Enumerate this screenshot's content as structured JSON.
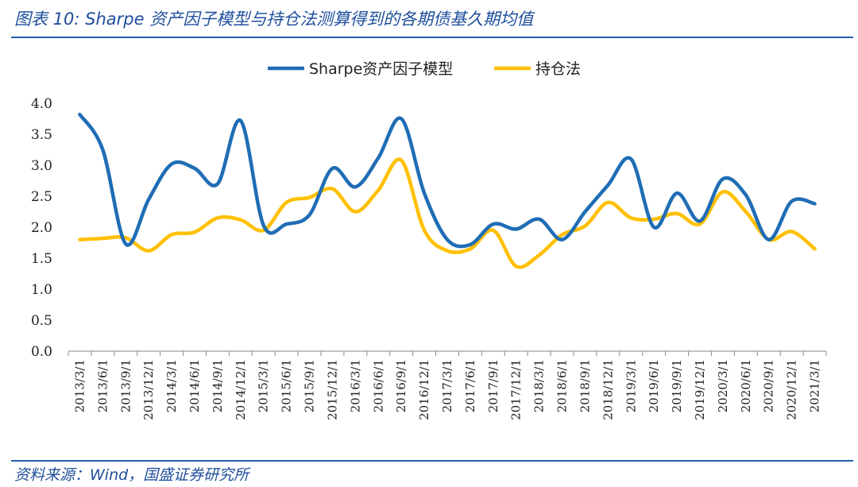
{
  "title": "图表 10: Sharpe 资产因子模型与持仓法测算得到的各期债基久期均值",
  "source": "资料来源：Wind，国盛证券研究所",
  "chart_data": {
    "type": "line",
    "title": "图表 10: Sharpe 资产因子模型与持仓法测算得到的各期债基久期均值",
    "xlabel": "",
    "ylabel": "",
    "ylim": [
      0,
      4.0
    ],
    "yticks": [
      "0.0",
      "0.5",
      "1.0",
      "1.5",
      "2.0",
      "2.5",
      "3.0",
      "3.5",
      "4.0"
    ],
    "grid": false,
    "legend_position": "top-center",
    "categories": [
      "2013/3/1",
      "2013/6/1",
      "2013/9/1",
      "2013/12/1",
      "2014/3/1",
      "2014/6/1",
      "2014/9/1",
      "2014/12/1",
      "2015/3/1",
      "2015/6/1",
      "2015/9/1",
      "2015/12/1",
      "2016/3/1",
      "2016/6/1",
      "2016/9/1",
      "2016/12/1",
      "2017/3/1",
      "2017/6/1",
      "2017/9/1",
      "2017/12/1",
      "2018/3/1",
      "2018/6/1",
      "2018/9/1",
      "2018/12/1",
      "2019/3/1",
      "2019/6/1",
      "2019/9/1",
      "2019/12/1",
      "2020/3/1",
      "2020/6/1",
      "2020/9/1",
      "2020/12/1",
      "2021/3/1"
    ],
    "series": [
      {
        "name": "Sharpe资产因子模型",
        "color": "#1f6db5",
        "values": [
          3.82,
          3.25,
          1.73,
          2.45,
          3.02,
          2.95,
          2.7,
          3.72,
          2.03,
          2.05,
          2.2,
          2.95,
          2.65,
          3.12,
          3.75,
          2.55,
          1.8,
          1.72,
          2.05,
          1.97,
          2.13,
          1.8,
          2.25,
          2.68,
          3.1,
          2.0,
          2.55,
          2.1,
          2.78,
          2.52,
          1.8,
          2.42,
          2.38
        ]
      },
      {
        "name": "持仓法",
        "color": "#ffc000",
        "values": [
          1.8,
          1.82,
          1.83,
          1.62,
          1.88,
          1.92,
          2.15,
          2.12,
          1.95,
          2.4,
          2.48,
          2.62,
          2.25,
          2.6,
          3.08,
          1.95,
          1.62,
          1.65,
          1.95,
          1.37,
          1.55,
          1.88,
          2.02,
          2.4,
          2.15,
          2.13,
          2.22,
          2.05,
          2.57,
          2.25,
          1.8,
          1.93,
          1.65
        ]
      }
    ]
  }
}
